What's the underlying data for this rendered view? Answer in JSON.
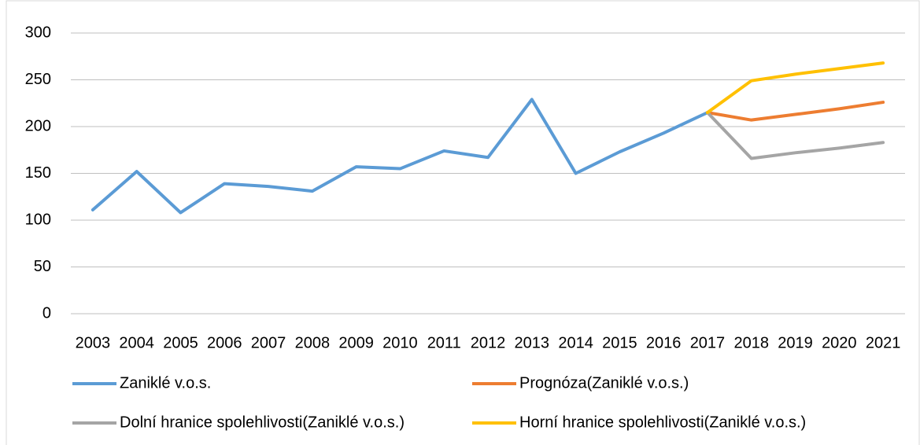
{
  "chart_data": {
    "type": "line",
    "categories": [
      "2003",
      "2004",
      "2005",
      "2006",
      "2007",
      "2008",
      "2009",
      "2010",
      "2011",
      "2012",
      "2013",
      "2014",
      "2015",
      "2016",
      "2017",
      "2018",
      "2019",
      "2020",
      "2021"
    ],
    "series": [
      {
        "name": "Zaniklé v.o.s.",
        "color": "#5b9bd5",
        "values": [
          111,
          152,
          108,
          139,
          136,
          131,
          157,
          155,
          174,
          167,
          229,
          150,
          173,
          193,
          215,
          null,
          null,
          null,
          null
        ]
      },
      {
        "name": "Prognóza(Zaniklé v.o.s.)",
        "color": "#ed7d31",
        "values": [
          null,
          null,
          null,
          null,
          null,
          null,
          null,
          null,
          null,
          null,
          null,
          null,
          null,
          null,
          215,
          207,
          213,
          219,
          226
        ]
      },
      {
        "name": "Dolní hranice spolehlivosti(Zaniklé v.o.s.)",
        "color": "#a5a5a5",
        "values": [
          null,
          null,
          null,
          null,
          null,
          null,
          null,
          null,
          null,
          null,
          null,
          null,
          null,
          null,
          215,
          166,
          172,
          177,
          183
        ]
      },
      {
        "name": "Horní hranice spolehlivosti(Zaniklé v.o.s.)",
        "color": "#ffc000",
        "values": [
          null,
          null,
          null,
          null,
          null,
          null,
          null,
          null,
          null,
          null,
          null,
          null,
          null,
          null,
          215,
          249,
          256,
          262,
          268
        ]
      }
    ],
    "ylim": [
      0,
      300
    ],
    "yticks": [
      0,
      50,
      100,
      150,
      200,
      250,
      300
    ],
    "grid": true,
    "legend": "bottom"
  }
}
